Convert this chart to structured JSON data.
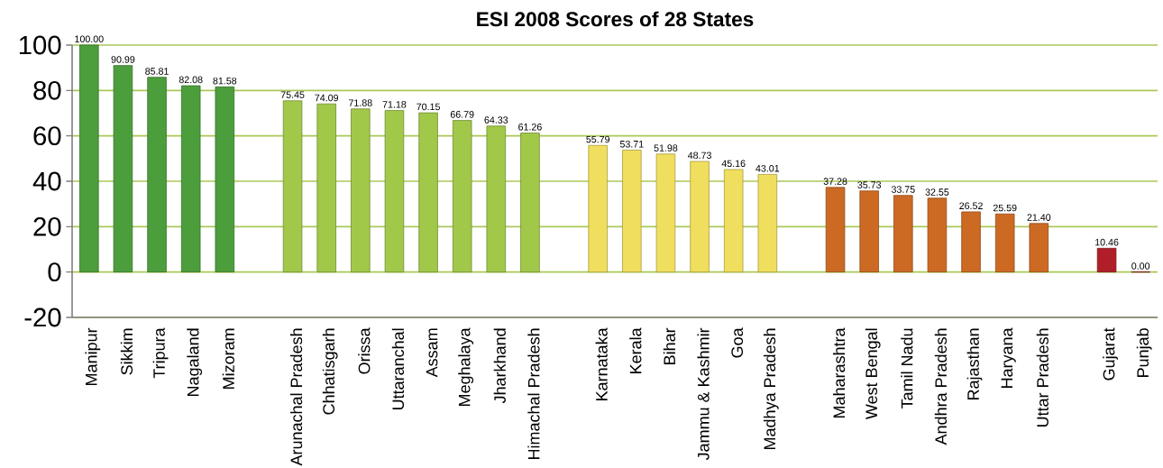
{
  "chart_data": {
    "type": "bar",
    "title": "ESI 2008 Scores of 28 States",
    "categories": [
      "Manipur",
      "Sikkim",
      "Tripura",
      "Nagaland",
      "Mizoram",
      null,
      "Arunachal Pradesh",
      "Chhatisgarh",
      "Orissa",
      "Uttaranchal",
      "Assam",
      "Meghalaya",
      "Jharkhand",
      "Himachal Pradesh",
      null,
      "Karnataka",
      "Kerala",
      "Bihar",
      "Jammu & Kashmir",
      "Goa",
      "Madhya Pradesh",
      null,
      "Maharashtra",
      "West Bengal",
      "Tamil Nadu",
      "Andhra Pradesh",
      "Rajasthan",
      "Haryana",
      "Uttar Pradesh",
      null,
      "Gujarat",
      "Punjab"
    ],
    "values": [
      100,
      90.99,
      85.81,
      82.08,
      81.58,
      null,
      75.45,
      74.09,
      71.88,
      71.18,
      70.15,
      66.79,
      64.33,
      61.26,
      null,
      55.79,
      53.71,
      51.98,
      48.73,
      45.16,
      43.01,
      null,
      37.28,
      35.73,
      33.75,
      32.55,
      26.52,
      25.59,
      21.4,
      null,
      10.46,
      0
    ],
    "value_labels": [
      "100.00",
      "90.99",
      "85.81",
      "82.08",
      "81.58",
      null,
      "75.45",
      "74.09",
      "71.88",
      "71.18",
      "70.15",
      "66.79",
      "64.33",
      "61.26",
      null,
      "55.79",
      "53.71",
      "51.98",
      "48.73",
      "45.16",
      "43.01",
      null,
      "37.28",
      "35.73",
      "33.75",
      "32.55",
      "26.52",
      "25.59",
      "21.40",
      null,
      "10.46",
      "0.00"
    ],
    "colors": [
      "#4c9e3c",
      "#4c9e3c",
      "#4c9e3c",
      "#4c9e3c",
      "#4c9e3c",
      null,
      "#a2c84a",
      "#a2c84a",
      "#a2c84a",
      "#a2c84a",
      "#a2c84a",
      "#a2c84a",
      "#a2c84a",
      "#a2c84a",
      null,
      "#f0df5e",
      "#f0df5e",
      "#f0df5e",
      "#f0df5e",
      "#f0df5e",
      "#f0df5e",
      null,
      "#cc6a24",
      "#cc6a24",
      "#cc6a24",
      "#cc6a24",
      "#cc6a24",
      "#cc6a24",
      "#cc6a24",
      null,
      "#b01e28",
      "#b01e28"
    ],
    "ylim": [
      -20,
      100
    ],
    "yticks": [
      -20,
      0,
      20,
      40,
      60,
      80,
      100
    ],
    "grid": "y"
  }
}
